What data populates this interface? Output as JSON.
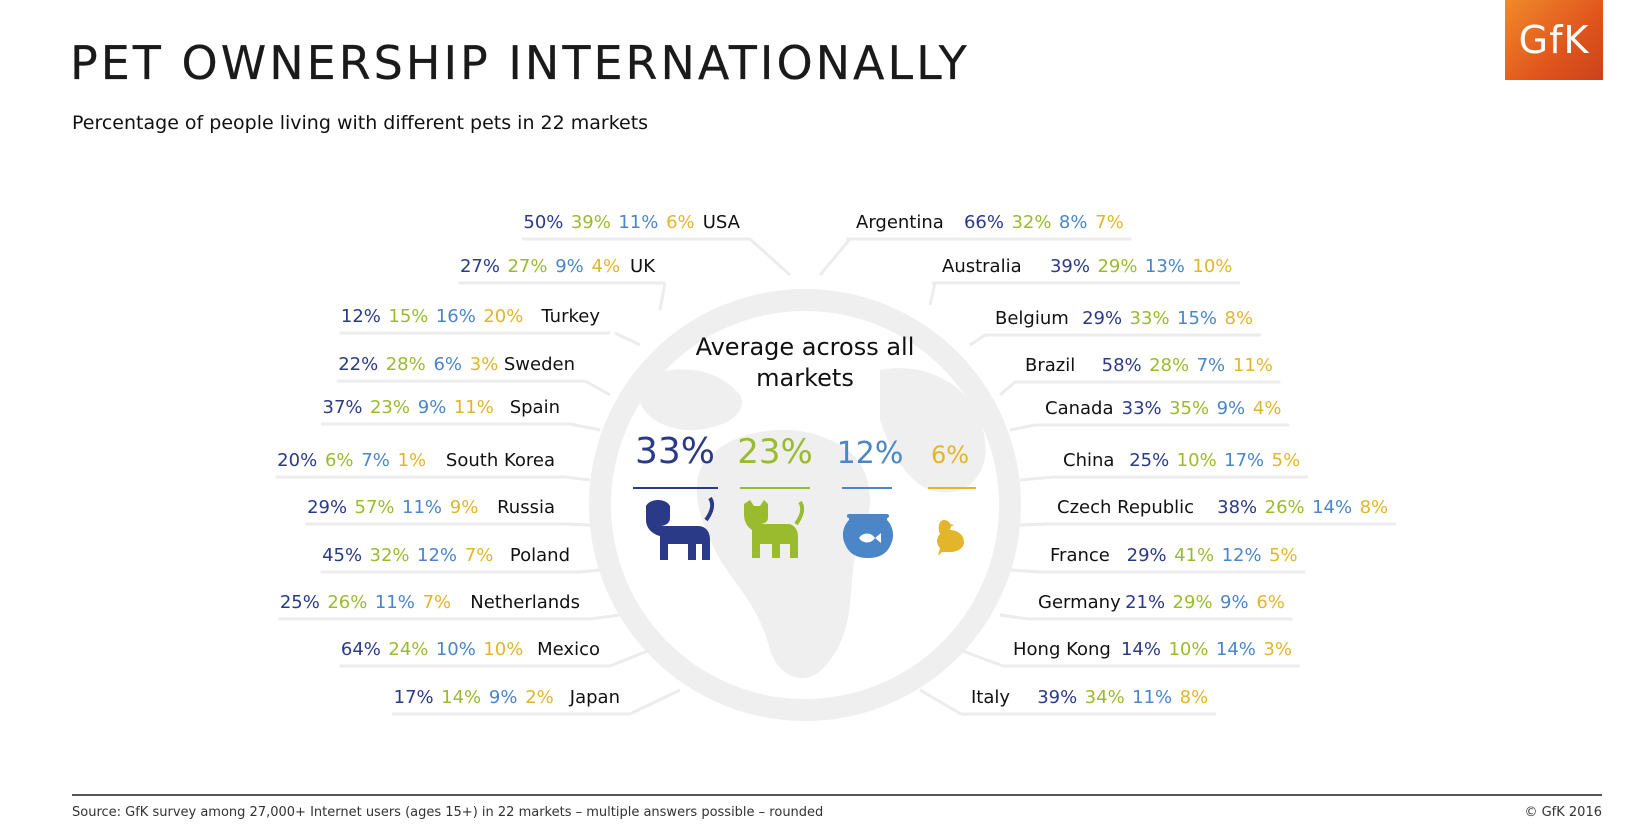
{
  "title": "PET OWNERSHIP INTERNATIONALLY",
  "subtitle": "Percentage of people living with different pets in 22 markets",
  "logo_text": "GfK",
  "footer": {
    "source": "Source:  GfK survey among 27,000+ Internet users (ages 15+) in 22 markets   – multiple answers possible – rounded",
    "copyright": "© GfK 2016"
  },
  "colors": {
    "dog": "#2b3a87",
    "cat": "#9bbb2e",
    "fish": "#4a86c8",
    "bird": "#e2b52a",
    "globe": "#efefef",
    "logo": "#e8621f"
  },
  "icons": [
    "dog-icon",
    "cat-icon",
    "fishbowl-icon",
    "bird-icon"
  ],
  "chart_data": {
    "type": "table",
    "title": "Average across all markets",
    "series": [
      "dog",
      "cat",
      "fish",
      "bird"
    ],
    "average": {
      "dog": "33%",
      "cat": "23%",
      "fish": "12%",
      "bird": "6%"
    },
    "left": [
      {
        "country": "USA",
        "values": [
          "50%",
          "39%",
          "11%",
          "6%"
        ]
      },
      {
        "country": "UK",
        "values": [
          "27%",
          "27%",
          "9%",
          "4%"
        ]
      },
      {
        "country": "Turkey",
        "values": [
          "12%",
          "15%",
          "16%",
          "20%"
        ]
      },
      {
        "country": "Sweden",
        "values": [
          "22%",
          "28%",
          "6%",
          "3%"
        ]
      },
      {
        "country": "Spain",
        "values": [
          "37%",
          "23%",
          "9%",
          "11%"
        ]
      },
      {
        "country": "South Korea",
        "values": [
          "20%",
          "6%",
          "7%",
          "1%"
        ]
      },
      {
        "country": "Russia",
        "values": [
          "29%",
          "57%",
          "11%",
          "9%"
        ]
      },
      {
        "country": "Poland",
        "values": [
          "45%",
          "32%",
          "12%",
          "7%"
        ]
      },
      {
        "country": "Netherlands",
        "values": [
          "25%",
          "26%",
          "11%",
          "7%"
        ]
      },
      {
        "country": "Mexico",
        "values": [
          "64%",
          "24%",
          "10%",
          "10%"
        ]
      },
      {
        "country": "Japan",
        "values": [
          "17%",
          "14%",
          "9%",
          "2%"
        ]
      }
    ],
    "right": [
      {
        "country": "Argentina",
        "values": [
          "66%",
          "32%",
          "8%",
          "7%"
        ]
      },
      {
        "country": "Australia",
        "values": [
          "39%",
          "29%",
          "13%",
          "10%"
        ]
      },
      {
        "country": "Belgium",
        "values": [
          "29%",
          "33%",
          "15%",
          "8%"
        ]
      },
      {
        "country": "Brazil",
        "values": [
          "58%",
          "28%",
          "7%",
          "11%"
        ]
      },
      {
        "country": "Canada",
        "values": [
          "33%",
          "35%",
          "9%",
          "4%"
        ]
      },
      {
        "country": "China",
        "values": [
          "25%",
          "10%",
          "17%",
          "5%"
        ]
      },
      {
        "country": "Czech Republic",
        "values": [
          "38%",
          "26%",
          "14%",
          "8%"
        ]
      },
      {
        "country": "France",
        "values": [
          "29%",
          "41%",
          "12%",
          "5%"
        ]
      },
      {
        "country": "Germany",
        "values": [
          "21%",
          "29%",
          "9%",
          "6%"
        ]
      },
      {
        "country": "Hong Kong",
        "values": [
          "14%",
          "10%",
          "14%",
          "3%"
        ]
      },
      {
        "country": "Italy",
        "values": [
          "39%",
          "34%",
          "11%",
          "8%"
        ]
      }
    ]
  }
}
